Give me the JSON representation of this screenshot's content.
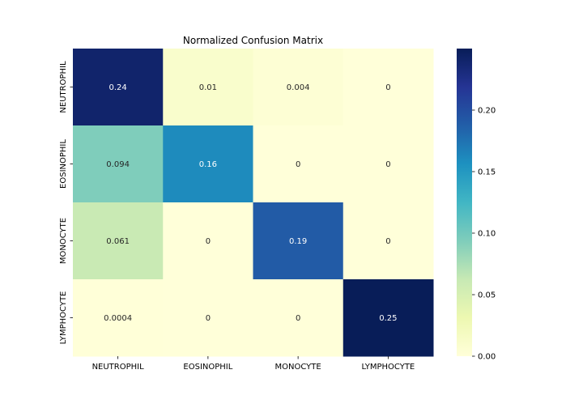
{
  "chart_data": {
    "type": "heatmap",
    "title": "Normalized Confusion Matrix",
    "xlabel": "",
    "ylabel": "",
    "x_categories": [
      "NEUTROPHIL",
      "EOSINOPHIL",
      "MONOCYTE",
      "LYMPHOCYTE"
    ],
    "y_categories": [
      "NEUTROPHIL",
      "EOSINOPHIL",
      "MONOCYTE",
      "LYMPHOCYTE"
    ],
    "values": [
      [
        0.24,
        0.01,
        0.004,
        0
      ],
      [
        0.094,
        0.16,
        0,
        0
      ],
      [
        0.061,
        0,
        0.19,
        0
      ],
      [
        0.0004,
        0,
        0,
        0.25
      ]
    ],
    "cell_labels": [
      [
        "0.24",
        "0.01",
        "0.004",
        "0"
      ],
      [
        "0.094",
        "0.16",
        "0",
        "0"
      ],
      [
        "0.061",
        "0",
        "0.19",
        "0"
      ],
      [
        "0.0004",
        "0",
        "0",
        "0.25"
      ]
    ],
    "colorscale": "YlGnBu",
    "color_range": [
      0,
      0.25
    ],
    "colorbar_ticks": [
      0.0,
      0.05,
      0.1,
      0.15,
      0.2
    ],
    "colorbar_tick_labels": [
      "0.00",
      "0.05",
      "0.10",
      "0.15",
      "0.20"
    ],
    "colorbar_position": "right"
  }
}
